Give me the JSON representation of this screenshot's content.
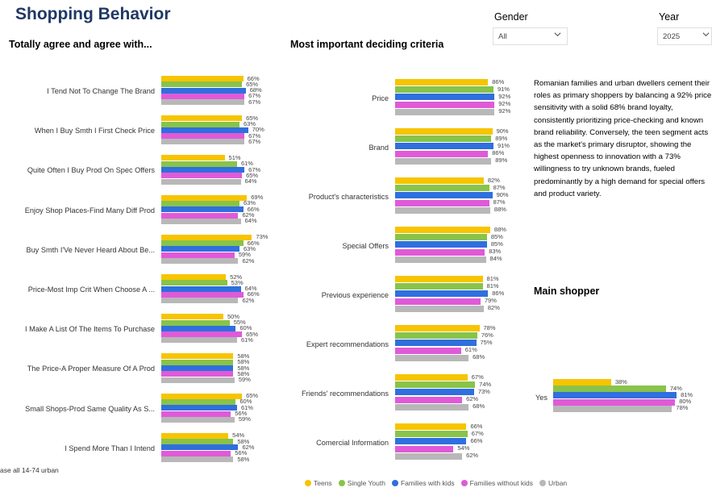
{
  "page": {
    "title": "Shopping Behavior",
    "base_note": "ase all 14-74 urban"
  },
  "filters": {
    "gender": {
      "label": "Gender",
      "value": "All",
      "icon": "chevron-down-icon"
    },
    "year": {
      "label": "Year",
      "value": "2025",
      "icon": "chevron-down-icon"
    }
  },
  "colors": {
    "Teens": "#f7c400",
    "Single Youth": "#88c34a",
    "Families with kids": "#2f6fde",
    "Families without kids": "#e05ad8",
    "Urban": "#b8b8b8"
  },
  "insight_text": "Romanian families and urban dwellers cement their roles as primary shoppers by balancing a 92% price sensitivity with a solid 68% brand loyalty, consistently prioritizing price-checking and known brand reliability. Conversely, the teen segment acts as the market's primary disruptor, showing the highest openness to innovation with a 73% willingness to try unknown brands, fueled predominantly by a high demand for special offers and product variety.",
  "legend": [
    "Teens",
    "Single Youth",
    "Families with kids",
    "Families without kids",
    "Urban"
  ],
  "chart_data": [
    {
      "type": "bar",
      "orientation": "horizontal",
      "title": "Totally agree and agree with...",
      "categories": [
        "I Tend Not To Change The Brand",
        "When I Buy Smth I First Check Price",
        "Quite Often I Buy Prod On Spec Offers",
        "Enjoy Shop Places-Find Many Diff Prod",
        "Buy Smth I'Ve Never Heard About Be...",
        "Price-Most Imp Crit When Choose A ...",
        "I Make A List Of The Items To Purchase",
        "The Price-A Proper Measure Of A Prod",
        "Small Shops-Prod Same Quality As S...",
        "I Spend More Than I Intend"
      ],
      "series": [
        {
          "name": "Teens",
          "values": [
            66,
            65,
            51,
            69,
            73,
            52,
            50,
            58,
            65,
            54
          ]
        },
        {
          "name": "Single Youth",
          "values": [
            65,
            63,
            61,
            63,
            66,
            53,
            55,
            58,
            60,
            58
          ]
        },
        {
          "name": "Families with kids",
          "values": [
            68,
            70,
            67,
            66,
            63,
            64,
            60,
            58,
            61,
            62
          ]
        },
        {
          "name": "Families without kids",
          "values": [
            67,
            67,
            65,
            62,
            59,
            66,
            65,
            58,
            56,
            56
          ]
        },
        {
          "name": "Urban",
          "values": [
            67,
            67,
            64,
            64,
            62,
            62,
            61,
            59,
            59,
            58
          ]
        }
      ],
      "value_suffix": "%"
    },
    {
      "type": "bar",
      "orientation": "horizontal",
      "title": "Most important deciding criteria",
      "categories": [
        "Price",
        "Brand",
        "Product's characteristics",
        "Special Offers",
        "Previous experience",
        "Expert recommendations",
        "Friends' recommendations",
        "Comercial Information"
      ],
      "series": [
        {
          "name": "Teens",
          "values": [
            86,
            90,
            82,
            88,
            81,
            78,
            67,
            66
          ]
        },
        {
          "name": "Single Youth",
          "values": [
            91,
            89,
            87,
            85,
            81,
            76,
            74,
            67
          ]
        },
        {
          "name": "Families with kids",
          "values": [
            92,
            91,
            90,
            85,
            86,
            75,
            73,
            66
          ]
        },
        {
          "name": "Families without kids",
          "values": [
            92,
            86,
            87,
            83,
            79,
            61,
            62,
            54
          ]
        },
        {
          "name": "Urban",
          "values": [
            92,
            89,
            88,
            84,
            82,
            68,
            68,
            62
          ]
        }
      ],
      "value_suffix": "%"
    },
    {
      "type": "bar",
      "orientation": "horizontal",
      "title": "Main shopper",
      "categories": [
        "Yes"
      ],
      "series": [
        {
          "name": "Teens",
          "values": [
            38
          ]
        },
        {
          "name": "Single Youth",
          "values": [
            74
          ]
        },
        {
          "name": "Families with kids",
          "values": [
            81
          ]
        },
        {
          "name": "Families without kids",
          "values": [
            80
          ]
        },
        {
          "name": "Urban",
          "values": [
            78
          ]
        }
      ],
      "value_suffix": "%"
    }
  ]
}
